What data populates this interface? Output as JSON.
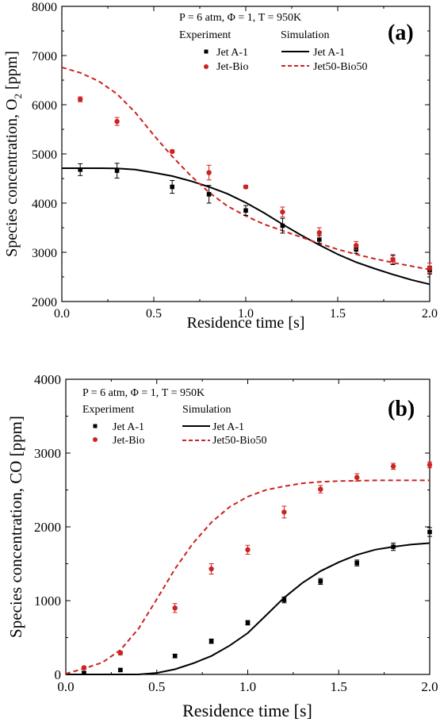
{
  "chart_data": [
    {
      "type": "scatter",
      "panel_label": "(a)",
      "conditions": "P = 6 atm, Φ = 1, T = 950K",
      "legend_experiment_title": "Experiment",
      "legend_simulation_title": "Simulation",
      "xlabel": "Residence time [s]",
      "ylabel_main": "Species concentration, O",
      "ylabel_sub": "2",
      "ylabel_unit": " [ppm]",
      "xlim": [
        0,
        2.0
      ],
      "ylim": [
        2000,
        8000
      ],
      "xticks": [
        "0.0",
        "0.5",
        "1.0",
        "1.5",
        "2.0"
      ],
      "yticks": [
        "2000",
        "3000",
        "4000",
        "5000",
        "6000",
        "7000",
        "8000"
      ],
      "grid": false,
      "legend_position": "top-right",
      "series": [
        {
          "name": "Jet A-1",
          "kind": "experiment",
          "marker": "square",
          "color": "#000000",
          "x": [
            0.1,
            0.3,
            0.6,
            0.8,
            1.0,
            1.2,
            1.4,
            1.6,
            1.8,
            2.0
          ],
          "y": [
            4680,
            4660,
            4330,
            4180,
            3850,
            3540,
            3260,
            3060,
            2850,
            2640
          ],
          "err": [
            120,
            150,
            130,
            180,
            100,
            150,
            80,
            80,
            100,
            80
          ]
        },
        {
          "name": "Jet-Bio",
          "kind": "experiment",
          "marker": "circle",
          "color": "#cc2222",
          "x": [
            0.1,
            0.3,
            0.6,
            0.8,
            1.0,
            1.2,
            1.4,
            1.6,
            1.8,
            2.0
          ],
          "y": [
            6110,
            5660,
            5050,
            4620,
            4330,
            3820,
            3400,
            3140,
            2850,
            2680
          ],
          "err": [
            50,
            80,
            30,
            150,
            30,
            100,
            100,
            80,
            80,
            100
          ]
        },
        {
          "name": "Jet A-1",
          "kind": "simulation",
          "style": "solid",
          "color": "#000000",
          "x": [
            0.0,
            0.1,
            0.2,
            0.3,
            0.4,
            0.5,
            0.6,
            0.7,
            0.8,
            0.9,
            1.0,
            1.1,
            1.2,
            1.3,
            1.4,
            1.5,
            1.6,
            1.7,
            1.8,
            1.9,
            2.0
          ],
          "y": [
            4710,
            4710,
            4710,
            4705,
            4680,
            4620,
            4550,
            4450,
            4330,
            4190,
            4010,
            3800,
            3570,
            3350,
            3150,
            2960,
            2800,
            2670,
            2550,
            2440,
            2350
          ]
        },
        {
          "name": "Jet50-Bio50",
          "kind": "simulation",
          "style": "dashed",
          "color": "#cc2222",
          "x": [
            0.0,
            0.1,
            0.2,
            0.3,
            0.4,
            0.5,
            0.6,
            0.7,
            0.8,
            0.9,
            1.0,
            1.1,
            1.2,
            1.3,
            1.4,
            1.5,
            1.6,
            1.7,
            1.8,
            1.9,
            2.0
          ],
          "y": [
            6760,
            6650,
            6480,
            6220,
            5840,
            5380,
            4950,
            4560,
            4220,
            3940,
            3740,
            3570,
            3440,
            3310,
            3180,
            3060,
            2960,
            2870,
            2790,
            2720,
            2650
          ]
        }
      ]
    },
    {
      "type": "scatter",
      "panel_label": "(b)",
      "conditions": "P = 6 atm, Φ = 1, T = 950K",
      "legend_experiment_title": "Experiment",
      "legend_simulation_title": "Simulation",
      "xlabel": "Residence time [s]",
      "ylabel_main": "Species concentration, CO [ppm]",
      "xlim": [
        0,
        2.0
      ],
      "ylim": [
        0,
        4000
      ],
      "xticks": [
        "0.0",
        "0.5",
        "1.0",
        "1.5",
        "2.0"
      ],
      "yticks": [
        "0",
        "1000",
        "2000",
        "3000",
        "4000"
      ],
      "grid": false,
      "legend_position": "top-left",
      "series": [
        {
          "name": "Jet A-1",
          "kind": "experiment",
          "marker": "square",
          "color": "#000000",
          "x": [
            0.1,
            0.3,
            0.6,
            0.8,
            1.0,
            1.2,
            1.4,
            1.6,
            1.8,
            2.0
          ],
          "y": [
            20,
            60,
            250,
            450,
            700,
            1010,
            1260,
            1510,
            1730,
            1930
          ],
          "err": [
            15,
            20,
            25,
            30,
            30,
            40,
            40,
            40,
            50,
            60
          ]
        },
        {
          "name": "Jet-Bio",
          "kind": "experiment",
          "marker": "circle",
          "color": "#cc2222",
          "x": [
            0.1,
            0.3,
            0.6,
            0.8,
            1.0,
            1.2,
            1.4,
            1.6,
            1.8,
            2.0
          ],
          "y": [
            90,
            290,
            900,
            1430,
            1690,
            2200,
            2510,
            2670,
            2820,
            2840
          ],
          "err": [
            20,
            25,
            60,
            70,
            60,
            80,
            50,
            50,
            40,
            40
          ]
        },
        {
          "name": "Jet A-1",
          "kind": "simulation",
          "style": "solid",
          "color": "#000000",
          "x": [
            0.0,
            0.1,
            0.2,
            0.3,
            0.4,
            0.5,
            0.6,
            0.7,
            0.8,
            0.9,
            1.0,
            1.1,
            1.2,
            1.3,
            1.4,
            1.5,
            1.6,
            1.7,
            1.8,
            1.9,
            2.0
          ],
          "y": [
            0,
            0,
            0,
            0,
            0,
            20,
            70,
            150,
            250,
            390,
            560,
            800,
            1040,
            1240,
            1400,
            1520,
            1620,
            1690,
            1730,
            1760,
            1780
          ]
        },
        {
          "name": "Jet50-Bio50",
          "kind": "simulation",
          "style": "dashed",
          "color": "#cc2222",
          "x": [
            0.0,
            0.1,
            0.2,
            0.3,
            0.4,
            0.5,
            0.6,
            0.7,
            0.8,
            0.9,
            1.0,
            1.1,
            1.2,
            1.3,
            1.4,
            1.5,
            1.6,
            1.7,
            1.8,
            1.9,
            2.0
          ],
          "y": [
            10,
            80,
            160,
            330,
            620,
            1020,
            1430,
            1780,
            2060,
            2270,
            2410,
            2500,
            2550,
            2590,
            2610,
            2620,
            2625,
            2630,
            2630,
            2630,
            2630
          ]
        }
      ]
    }
  ]
}
